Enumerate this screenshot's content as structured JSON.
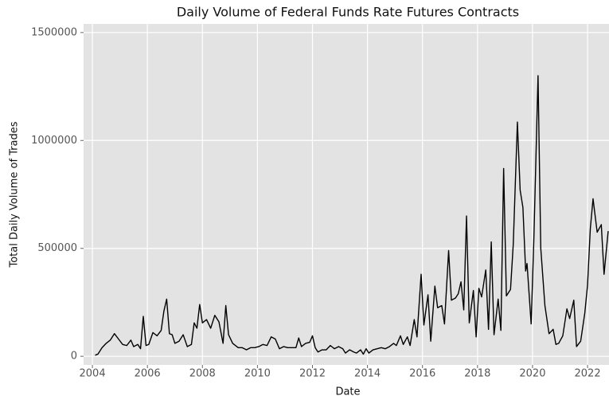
{
  "chart_data": {
    "type": "line",
    "title": "Daily Volume of Federal Funds Rate Futures Contracts",
    "x_label": "Date",
    "y_label": "Total Daily Volume of Trades",
    "xlim": [
      2003.68,
      2022.78
    ],
    "xticks": [
      2004,
      2006,
      2008,
      2010,
      2012,
      2014,
      2016,
      2018,
      2020,
      2022
    ],
    "ylim": [
      -40000,
      1540000
    ],
    "yticks": [
      0,
      500000,
      1000000,
      1500000
    ],
    "grid": true,
    "background": "#e3e3e3",
    "color": "#000000",
    "x": [
      2004.1,
      2004.2,
      2004.35,
      2004.5,
      2004.65,
      2004.8,
      2004.95,
      2005.1,
      2005.25,
      2005.4,
      2005.5,
      2005.65,
      2005.75,
      2005.85,
      2005.95,
      2006.05,
      2006.2,
      2006.35,
      2006.5,
      2006.6,
      2006.7,
      2006.8,
      2006.9,
      2007.0,
      2007.15,
      2007.3,
      2007.45,
      2007.6,
      2007.7,
      2007.8,
      2007.9,
      2008.0,
      2008.15,
      2008.3,
      2008.45,
      2008.6,
      2008.75,
      2008.85,
      2008.95,
      2009.1,
      2009.3,
      2009.45,
      2009.6,
      2009.75,
      2009.9,
      2010.05,
      2010.2,
      2010.35,
      2010.5,
      2010.65,
      2010.8,
      2010.95,
      2011.1,
      2011.25,
      2011.4,
      2011.5,
      2011.6,
      2011.75,
      2011.9,
      2012.0,
      2012.1,
      2012.2,
      2012.35,
      2012.5,
      2012.65,
      2012.8,
      2012.95,
      2013.1,
      2013.2,
      2013.35,
      2013.5,
      2013.6,
      2013.75,
      2013.85,
      2013.95,
      2014.05,
      2014.2,
      2014.35,
      2014.5,
      2014.65,
      2014.8,
      2014.95,
      2015.05,
      2015.2,
      2015.3,
      2015.45,
      2015.55,
      2015.7,
      2015.8,
      2015.95,
      2016.05,
      2016.2,
      2016.3,
      2016.45,
      2016.55,
      2016.7,
      2016.8,
      2016.95,
      2017.05,
      2017.2,
      2017.3,
      2017.4,
      2017.5,
      2017.6,
      2017.7,
      2017.85,
      2017.95,
      2018.05,
      2018.15,
      2018.3,
      2018.4,
      2018.5,
      2018.6,
      2018.75,
      2018.85,
      2018.95,
      2019.05,
      2019.2,
      2019.3,
      2019.45,
      2019.55,
      2019.65,
      2019.75,
      2019.8,
      2019.95,
      2020.05,
      2020.2,
      2020.3,
      2020.45,
      2020.6,
      2020.75,
      2020.85,
      2020.95,
      2021.1,
      2021.25,
      2021.35,
      2021.5,
      2021.6,
      2021.75,
      2021.9,
      2022.0,
      2022.1,
      2022.2,
      2022.35,
      2022.5,
      2022.6,
      2022.75
    ],
    "values": [
      5000,
      10000,
      40000,
      60000,
      75000,
      105000,
      80000,
      55000,
      50000,
      75000,
      45000,
      55000,
      35000,
      185000,
      50000,
      55000,
      110000,
      95000,
      120000,
      210000,
      265000,
      105000,
      100000,
      60000,
      70000,
      100000,
      45000,
      55000,
      155000,
      130000,
      240000,
      155000,
      170000,
      130000,
      190000,
      160000,
      60000,
      235000,
      100000,
      60000,
      40000,
      40000,
      30000,
      40000,
      40000,
      45000,
      55000,
      50000,
      90000,
      80000,
      35000,
      45000,
      40000,
      40000,
      40000,
      85000,
      45000,
      60000,
      65000,
      95000,
      40000,
      20000,
      30000,
      30000,
      50000,
      35000,
      45000,
      35000,
      15000,
      30000,
      20000,
      15000,
      30000,
      10000,
      35000,
      15000,
      30000,
      35000,
      40000,
      35000,
      45000,
      60000,
      50000,
      95000,
      55000,
      90000,
      50000,
      170000,
      90000,
      380000,
      145000,
      285000,
      70000,
      325000,
      225000,
      235000,
      150000,
      490000,
      260000,
      270000,
      290000,
      345000,
      215000,
      650000,
      155000,
      305000,
      90000,
      315000,
      275000,
      400000,
      125000,
      530000,
      100000,
      265000,
      120000,
      870000,
      280000,
      310000,
      520000,
      1085000,
      770000,
      690000,
      395000,
      430000,
      150000,
      550000,
      1300000,
      500000,
      235000,
      105000,
      125000,
      55000,
      60000,
      95000,
      220000,
      175000,
      260000,
      45000,
      70000,
      200000,
      330000,
      590000,
      730000,
      575000,
      610000,
      380000,
      580000
    ]
  }
}
